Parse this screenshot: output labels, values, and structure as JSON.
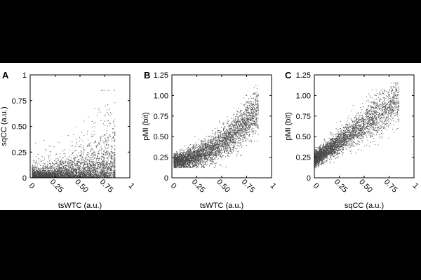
{
  "figure": {
    "background": "#000000",
    "panel_background": "#ffffff",
    "point_color": "#4a4a4a"
  },
  "chart_data": [
    {
      "type": "scatter",
      "panel_label": "A",
      "xlabel": "tsWTC (a.u.)",
      "ylabel": "sqCC (a.u.)",
      "xlim": [
        0,
        1
      ],
      "ylim": [
        0,
        1
      ],
      "xticks": [
        0,
        0.25,
        0.5,
        0.75,
        1
      ],
      "xtick_labels": [
        "0",
        "0.25",
        "0.50",
        "0.75",
        "1"
      ],
      "yticks": [
        0,
        0.25,
        0.5,
        0.75,
        1
      ],
      "ytick_labels": [
        "0",
        "0.25",
        "0.50",
        "0.75",
        "1"
      ],
      "grid": false,
      "legend": "none",
      "series": [
        {
          "approx_point_count": 4000,
          "approx_x_range": [
            0.02,
            0.85
          ],
          "approx_y_range": [
            0,
            0.85
          ],
          "trend": [
            [
              0.05,
              0.03
            ],
            [
              0.25,
              0.1
            ],
            [
              0.5,
              0.22
            ],
            [
              0.75,
              0.4
            ]
          ]
        }
      ]
    },
    {
      "type": "scatter",
      "panel_label": "B",
      "xlabel": "tsWTC (a.u.)",
      "ylabel": "pMI (bit)",
      "xlim": [
        0,
        1
      ],
      "ylim": [
        0,
        1.25
      ],
      "xticks": [
        0,
        0.25,
        0.5,
        0.75,
        1
      ],
      "xtick_labels": [
        "0",
        "0.25",
        "0.50",
        "0.75",
        "1"
      ],
      "yticks": [
        0,
        0.25,
        0.5,
        0.75,
        1,
        1.25
      ],
      "ytick_labels": [
        "0",
        "0.25",
        "0.50",
        "0.75",
        "1.00",
        "1.25"
      ],
      "grid": false,
      "legend": "none",
      "series": [
        {
          "approx_point_count": 4000,
          "approx_x_range": [
            0.02,
            0.85
          ],
          "approx_y_range": [
            0.12,
            1.15
          ],
          "trend": [
            [
              0.05,
              0.2
            ],
            [
              0.25,
              0.28
            ],
            [
              0.5,
              0.42
            ],
            [
              0.75,
              0.68
            ]
          ]
        }
      ]
    },
    {
      "type": "scatter",
      "panel_label": "C",
      "xlabel": "sqCC (a.u.)",
      "ylabel": "pMI (bit)",
      "xlim": [
        0,
        1
      ],
      "ylim": [
        0,
        1.25
      ],
      "xticks": [
        0,
        0.25,
        0.5,
        0.75,
        1
      ],
      "xtick_labels": [
        "0",
        "0.25",
        "0.50",
        "0.75",
        "1"
      ],
      "yticks": [
        0,
        0.25,
        0.5,
        0.75,
        1,
        1.25
      ],
      "ytick_labels": [
        "0",
        "0.25",
        "0.50",
        "0.75",
        "1.00",
        "1.25"
      ],
      "grid": false,
      "legend": "none",
      "series": [
        {
          "approx_point_count": 4000,
          "approx_x_range": [
            0,
            0.85
          ],
          "approx_y_range": [
            0.12,
            1.15
          ],
          "trend": [
            [
              0.02,
              0.22
            ],
            [
              0.25,
              0.42
            ],
            [
              0.5,
              0.62
            ],
            [
              0.75,
              0.9
            ]
          ]
        }
      ]
    }
  ]
}
